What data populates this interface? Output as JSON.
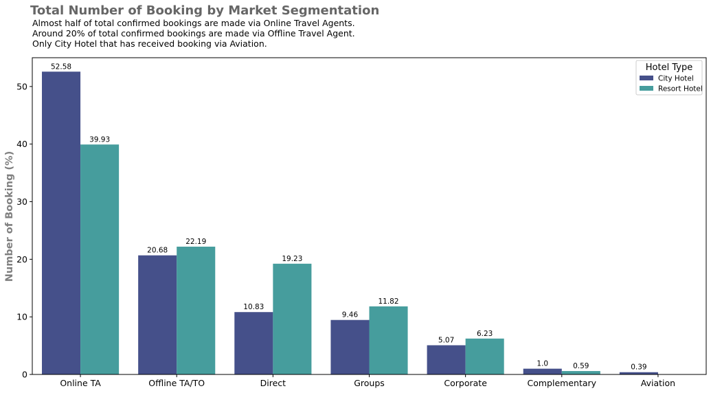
{
  "chart_data": {
    "type": "bar",
    "title": "Total Number of Booking by Market Segmentation",
    "subtitle_lines": [
      "Almost half of total confirmed bookings are made via Online Travel Agents.",
      "Around 20% of total confirmed bookings are made via Offline Travel Agent.",
      "Only City Hotel that has received booking via Aviation."
    ],
    "xlabel": "",
    "ylabel": "Number of Booking (%)",
    "ylim": [
      0,
      55
    ],
    "yticks": [
      0,
      10,
      20,
      30,
      40,
      50
    ],
    "categories": [
      "Online TA",
      "Offline TA/TO",
      "Direct",
      "Groups",
      "Corporate",
      "Complementary",
      "Aviation"
    ],
    "series": [
      {
        "name": "City Hotel",
        "color": "#45508a",
        "values": [
          52.58,
          20.68,
          10.83,
          9.46,
          5.07,
          1.0,
          0.39
        ],
        "labels": [
          "52.58",
          "20.68",
          "10.83",
          "9.46",
          "5.07",
          "1.0",
          "0.39"
        ]
      },
      {
        "name": "Resort Hotel",
        "color": "#469d9d",
        "values": [
          39.93,
          22.19,
          19.23,
          11.82,
          6.23,
          0.59,
          null
        ],
        "labels": [
          "39.93",
          "22.19",
          "19.23",
          "11.82",
          "6.23",
          "0.59",
          ""
        ]
      }
    ],
    "legend": {
      "title": "Hotel Type",
      "placement": "top-right"
    },
    "grid": false,
    "title_color": "#666666",
    "ylabel_color": "#808080"
  }
}
